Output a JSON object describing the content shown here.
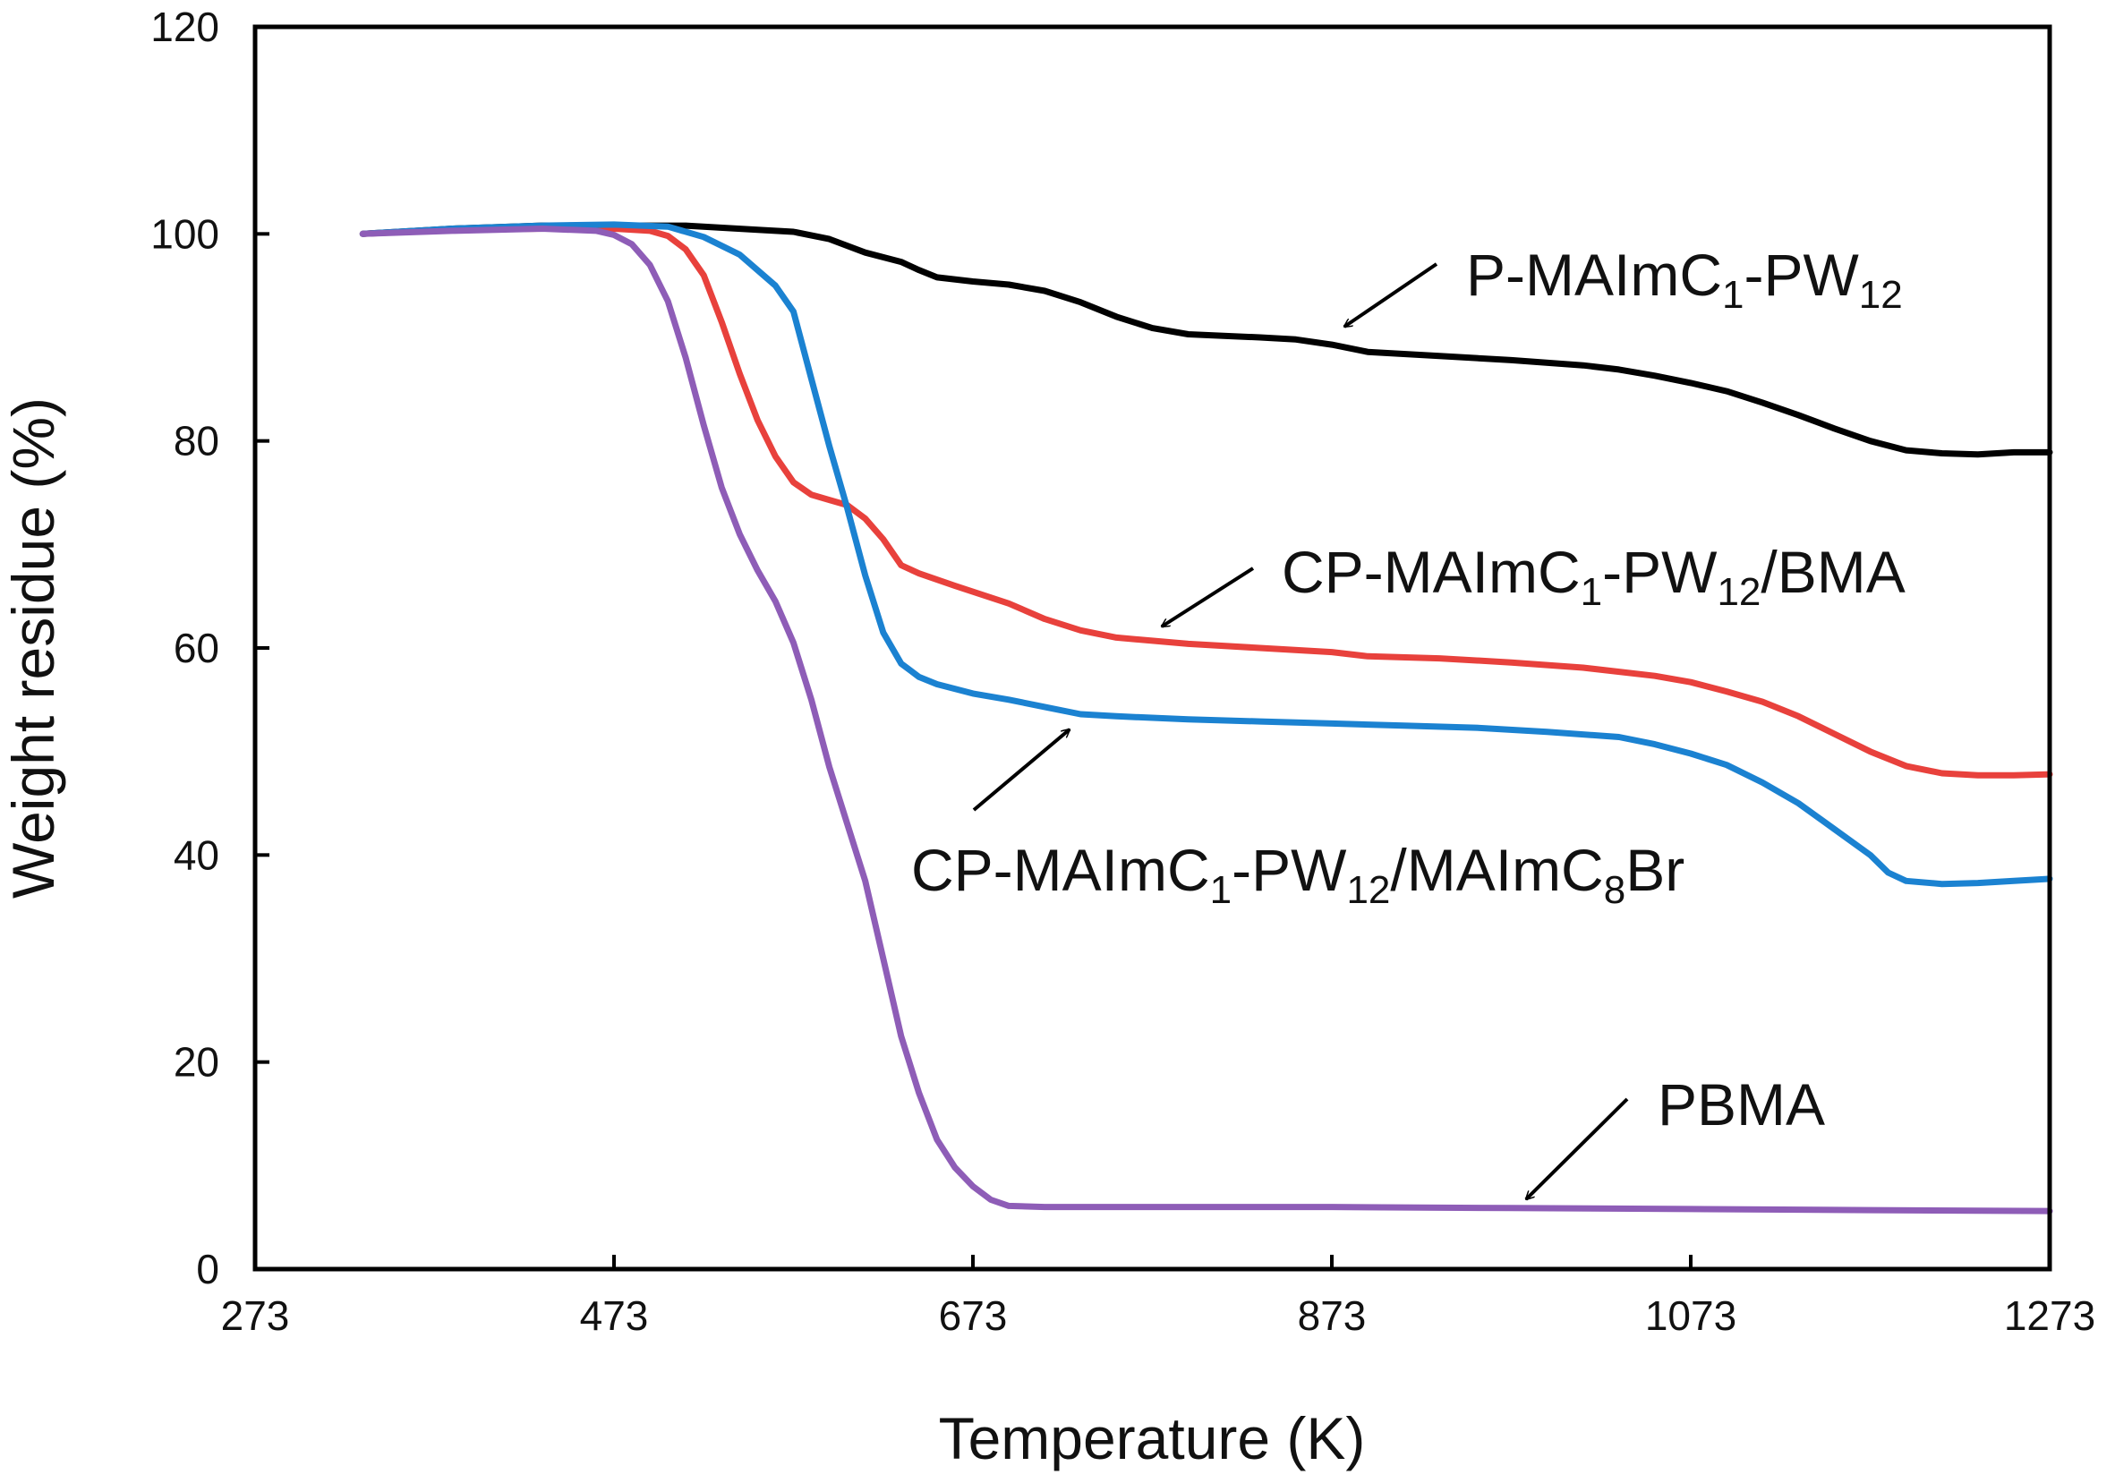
{
  "chart_data": {
    "type": "line",
    "title": "",
    "xlabel": "Temperature (K)",
    "ylabel": "Weight residue (%)",
    "xlim": [
      273,
      1273
    ],
    "ylim": [
      0,
      120
    ],
    "xticks": [
      273,
      473,
      673,
      873,
      1073,
      1273
    ],
    "yticks": [
      0,
      20,
      40,
      60,
      80,
      100,
      120
    ],
    "grid": false,
    "legend": "none",
    "series": [
      {
        "color": "#000000",
        "points": [
          [
            333,
            100
          ],
          [
            383,
            100.5
          ],
          [
            433,
            100.8
          ],
          [
            473,
            100.8
          ],
          [
            513,
            100.8
          ],
          [
            553,
            100.4
          ],
          [
            573,
            100.2
          ],
          [
            593,
            99.5
          ],
          [
            613,
            98.2
          ],
          [
            633,
            97.3
          ],
          [
            643,
            96.5
          ],
          [
            653,
            95.8
          ],
          [
            673,
            95.4
          ],
          [
            693,
            95.1
          ],
          [
            713,
            94.5
          ],
          [
            733,
            93.4
          ],
          [
            753,
            92.0
          ],
          [
            773,
            90.9
          ],
          [
            793,
            90.3
          ],
          [
            833,
            90.0
          ],
          [
            853,
            89.8
          ],
          [
            873,
            89.3
          ],
          [
            893,
            88.6
          ],
          [
            933,
            88.2
          ],
          [
            973,
            87.8
          ],
          [
            1013,
            87.3
          ],
          [
            1033,
            86.9
          ],
          [
            1053,
            86.3
          ],
          [
            1073,
            85.6
          ],
          [
            1093,
            84.8
          ],
          [
            1113,
            83.7
          ],
          [
            1133,
            82.5
          ],
          [
            1153,
            81.2
          ],
          [
            1173,
            80.0
          ],
          [
            1193,
            79.1
          ],
          [
            1213,
            78.8
          ],
          [
            1233,
            78.7
          ],
          [
            1253,
            78.9
          ],
          [
            1273,
            78.9
          ]
        ]
      },
      {
        "color": "#e8413c",
        "points": [
          [
            333,
            100
          ],
          [
            383,
            100.4
          ],
          [
            433,
            100.5
          ],
          [
            473,
            100.5
          ],
          [
            493,
            100.3
          ],
          [
            503,
            99.8
          ],
          [
            513,
            98.5
          ],
          [
            523,
            96.0
          ],
          [
            533,
            91.5
          ],
          [
            543,
            86.5
          ],
          [
            553,
            82.0
          ],
          [
            563,
            78.5
          ],
          [
            573,
            76.0
          ],
          [
            583,
            74.8
          ],
          [
            593,
            74.3
          ],
          [
            603,
            73.8
          ],
          [
            613,
            72.5
          ],
          [
            623,
            70.5
          ],
          [
            633,
            68.0
          ],
          [
            643,
            67.2
          ],
          [
            663,
            66.0
          ],
          [
            693,
            64.3
          ],
          [
            713,
            62.8
          ],
          [
            733,
            61.7
          ],
          [
            753,
            61.0
          ],
          [
            793,
            60.4
          ],
          [
            833,
            60.0
          ],
          [
            873,
            59.6
          ],
          [
            893,
            59.2
          ],
          [
            933,
            59.0
          ],
          [
            973,
            58.6
          ],
          [
            1013,
            58.1
          ],
          [
            1053,
            57.3
          ],
          [
            1073,
            56.7
          ],
          [
            1093,
            55.8
          ],
          [
            1113,
            54.8
          ],
          [
            1133,
            53.4
          ],
          [
            1153,
            51.7
          ],
          [
            1173,
            50.0
          ],
          [
            1193,
            48.6
          ],
          [
            1213,
            47.9
          ],
          [
            1233,
            47.7
          ],
          [
            1253,
            47.7
          ],
          [
            1273,
            47.8
          ]
        ]
      },
      {
        "color": "#1b82d1",
        "points": [
          [
            333,
            100
          ],
          [
            383,
            100.5
          ],
          [
            433,
            100.8
          ],
          [
            473,
            100.9
          ],
          [
            503,
            100.7
          ],
          [
            523,
            99.7
          ],
          [
            543,
            98.0
          ],
          [
            563,
            95.0
          ],
          [
            573,
            92.5
          ],
          [
            583,
            86.0
          ],
          [
            593,
            79.5
          ],
          [
            603,
            73.5
          ],
          [
            613,
            67.0
          ],
          [
            623,
            61.5
          ],
          [
            633,
            58.5
          ],
          [
            643,
            57.2
          ],
          [
            653,
            56.5
          ],
          [
            673,
            55.6
          ],
          [
            693,
            55.0
          ],
          [
            713,
            54.3
          ],
          [
            733,
            53.6
          ],
          [
            753,
            53.4
          ],
          [
            793,
            53.1
          ],
          [
            833,
            52.9
          ],
          [
            873,
            52.7
          ],
          [
            913,
            52.5
          ],
          [
            953,
            52.3
          ],
          [
            993,
            51.9
          ],
          [
            1033,
            51.4
          ],
          [
            1053,
            50.7
          ],
          [
            1073,
            49.8
          ],
          [
            1093,
            48.7
          ],
          [
            1113,
            47.0
          ],
          [
            1133,
            45.0
          ],
          [
            1153,
            42.5
          ],
          [
            1173,
            40.0
          ],
          [
            1183,
            38.3
          ],
          [
            1193,
            37.5
          ],
          [
            1213,
            37.2
          ],
          [
            1233,
            37.3
          ],
          [
            1253,
            37.5
          ],
          [
            1273,
            37.7
          ]
        ]
      },
      {
        "color": "#8e5db7",
        "points": [
          [
            333,
            100
          ],
          [
            383,
            100.3
          ],
          [
            433,
            100.5
          ],
          [
            463,
            100.3
          ],
          [
            473,
            99.9
          ],
          [
            483,
            99.0
          ],
          [
            493,
            97.0
          ],
          [
            503,
            93.5
          ],
          [
            513,
            88.0
          ],
          [
            523,
            81.5
          ],
          [
            533,
            75.5
          ],
          [
            543,
            71.0
          ],
          [
            553,
            67.5
          ],
          [
            563,
            64.5
          ],
          [
            573,
            60.5
          ],
          [
            583,
            55.0
          ],
          [
            593,
            48.5
          ],
          [
            603,
            43.0
          ],
          [
            613,
            37.5
          ],
          [
            623,
            30.0
          ],
          [
            633,
            22.5
          ],
          [
            643,
            17.0
          ],
          [
            653,
            12.5
          ],
          [
            663,
            9.8
          ],
          [
            673,
            8.0
          ],
          [
            683,
            6.7
          ],
          [
            693,
            6.1
          ],
          [
            713,
            6.0
          ],
          [
            753,
            6.0
          ],
          [
            873,
            6.0
          ],
          [
            973,
            5.9
          ],
          [
            1073,
            5.8
          ],
          [
            1173,
            5.7
          ],
          [
            1273,
            5.6
          ]
        ]
      }
    ],
    "annotations": [
      {
        "pre": "P-MAImC",
        "sub1": "1",
        "mid": "-PW",
        "sub2": "12",
        "post": "",
        "sub3": "",
        "tail": ""
      },
      {
        "pre": "CP-MAImC",
        "sub1": "1",
        "mid": "-PW",
        "sub2": "12",
        "post": "/BMA",
        "sub3": "",
        "tail": ""
      },
      {
        "pre": "CP-MAImC",
        "sub1": "1",
        "mid": "-PW",
        "sub2": "12",
        "post": "/MAImC",
        "sub3": "8",
        "tail": "Br"
      },
      {
        "pre": "PBMA",
        "sub1": "",
        "mid": "",
        "sub2": "",
        "post": "",
        "sub3": "",
        "tail": ""
      }
    ]
  }
}
